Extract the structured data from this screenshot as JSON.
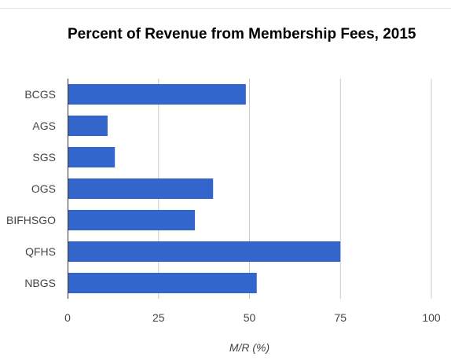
{
  "chart_data": {
    "type": "bar",
    "orientation": "horizontal",
    "title": "Percent of Revenue from Membership Fees, 2015",
    "categories": [
      "BCGS",
      "AGS",
      "SGS",
      "OGS",
      "BIFHSGO",
      "QFHS",
      "NBGS"
    ],
    "values": [
      49,
      11,
      13,
      40,
      35,
      75,
      52
    ],
    "xlabel": "M/R (%)",
    "ylabel": "",
    "xlim": [
      0,
      100
    ],
    "xticks": [
      "0",
      "25",
      "50",
      "75",
      "100"
    ],
    "grid": true,
    "legend": "none",
    "bar_color": "#3366cc"
  }
}
